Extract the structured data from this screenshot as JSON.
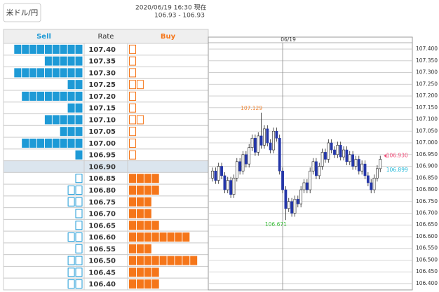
{
  "header": {
    "pair_button": "米ドル/円",
    "timestamp": "2020/06/19 16:30 現在",
    "quote": "106.93 - 106.93"
  },
  "order_book": {
    "columns": [
      "Sell",
      "Rate",
      "Buy"
    ],
    "sell_color": "#1e9ad6",
    "buy_color": "#f5761a",
    "rows": [
      {
        "rate": "107.40",
        "sell": 9,
        "buy": 1,
        "filled": "sell"
      },
      {
        "rate": "107.35",
        "sell": 5,
        "buy": 1,
        "filled": "sell"
      },
      {
        "rate": "107.30",
        "sell": 9,
        "buy": 1,
        "filled": "sell"
      },
      {
        "rate": "107.25",
        "sell": 2,
        "buy": 2,
        "filled": "sell"
      },
      {
        "rate": "107.20",
        "sell": 8,
        "buy": 1,
        "filled": "sell"
      },
      {
        "rate": "107.15",
        "sell": 2,
        "buy": 1,
        "filled": "sell"
      },
      {
        "rate": "107.10",
        "sell": 5,
        "buy": 2,
        "filled": "sell"
      },
      {
        "rate": "107.05",
        "sell": 3,
        "buy": 1,
        "filled": "sell"
      },
      {
        "rate": "107.00",
        "sell": 8,
        "buy": 1,
        "filled": "sell"
      },
      {
        "rate": "106.95",
        "sell": 1,
        "buy": 1,
        "filled": "sell"
      },
      {
        "rate": "106.90",
        "sell": 0,
        "buy": 0,
        "filled": null,
        "current": true
      },
      {
        "rate": "106.85",
        "sell": 1,
        "buy": 4,
        "filled": "buy"
      },
      {
        "rate": "106.80",
        "sell": 2,
        "buy": 4,
        "filled": "buy"
      },
      {
        "rate": "106.75",
        "sell": 2,
        "buy": 3,
        "filled": "buy"
      },
      {
        "rate": "106.70",
        "sell": 1,
        "buy": 3,
        "filled": "buy"
      },
      {
        "rate": "106.65",
        "sell": 1,
        "buy": 4,
        "filled": "buy"
      },
      {
        "rate": "106.60",
        "sell": 2,
        "buy": 8,
        "filled": "buy"
      },
      {
        "rate": "106.55",
        "sell": 1,
        "buy": 3,
        "filled": "buy"
      },
      {
        "rate": "106.50",
        "sell": 2,
        "buy": 9,
        "filled": "buy"
      },
      {
        "rate": "106.45",
        "sell": 2,
        "buy": 4,
        "filled": "buy"
      },
      {
        "rate": "106.40",
        "sell": 2,
        "buy": 4,
        "filled": "buy"
      }
    ]
  },
  "chart_data": {
    "type": "candlestick",
    "up_color": "#ffffff",
    "down_color": "#2436a8",
    "ylim": [
      106.373,
      107.451
    ],
    "grid": true,
    "yticks": [
      {
        "value": 107.4,
        "label": "107.400"
      },
      {
        "value": 107.35,
        "label": "107.350"
      },
      {
        "value": 107.3,
        "label": "107.300"
      },
      {
        "value": 107.25,
        "label": "107.250"
      },
      {
        "value": 107.2,
        "label": "107.200"
      },
      {
        "value": 107.15,
        "label": "107.150"
      },
      {
        "value": 107.1,
        "label": "107.100"
      },
      {
        "value": 107.05,
        "label": "107.050"
      },
      {
        "value": 107.0,
        "label": "107.000"
      },
      {
        "value": 106.95,
        "label": "106.950"
      },
      {
        "value": 106.9,
        "label": "106.900"
      },
      {
        "value": 106.85,
        "label": "106.850"
      },
      {
        "value": 106.8,
        "label": "106.800"
      },
      {
        "value": 106.75,
        "label": "106.750"
      },
      {
        "value": 106.7,
        "label": "106.700"
      },
      {
        "value": 106.65,
        "label": "106.650"
      },
      {
        "value": 106.6,
        "label": "106.600"
      },
      {
        "value": 106.55,
        "label": "106.550"
      },
      {
        "value": 106.5,
        "label": "106.500"
      },
      {
        "value": 106.45,
        "label": "106.450"
      },
      {
        "value": 106.4,
        "label": "106.400"
      }
    ],
    "divider": {
      "label": "06/19",
      "index": 23
    },
    "candles": [
      [
        106.85,
        106.895,
        106.835,
        106.88
      ],
      [
        106.88,
        106.895,
        106.825,
        106.84
      ],
      [
        106.84,
        106.915,
        106.825,
        106.9
      ],
      [
        106.9,
        106.915,
        106.845,
        106.86
      ],
      [
        106.86,
        106.875,
        106.785,
        106.8
      ],
      [
        106.8,
        106.855,
        106.785,
        106.84
      ],
      [
        106.84,
        106.855,
        106.765,
        106.78
      ],
      [
        106.78,
        106.865,
        106.765,
        106.85
      ],
      [
        106.85,
        106.935,
        106.835,
        106.92
      ],
      [
        106.92,
        106.935,
        106.865,
        106.88
      ],
      [
        106.88,
        106.965,
        106.865,
        106.95
      ],
      [
        106.95,
        106.965,
        106.895,
        106.91
      ],
      [
        106.91,
        106.995,
        106.895,
        106.98
      ],
      [
        106.98,
        107.035,
        106.965,
        107.02
      ],
      [
        107.02,
        107.035,
        106.945,
        106.96
      ],
      [
        106.96,
        107.045,
        106.945,
        107.03
      ],
      [
        107.03,
        107.129,
        106.975,
        106.99
      ],
      [
        106.99,
        107.075,
        106.975,
        107.06
      ],
      [
        107.06,
        107.075,
        106.985,
        107.0
      ],
      [
        107.0,
        107.015,
        106.955,
        106.97
      ],
      [
        106.97,
        107.065,
        106.955,
        107.05
      ],
      [
        107.05,
        107.065,
        107.005,
        107.02
      ],
      [
        107.02,
        107.035,
        106.865,
        106.88
      ],
      [
        106.88,
        106.895,
        106.785,
        106.8
      ],
      [
        106.8,
        106.815,
        106.671,
        106.72
      ],
      [
        106.72,
        106.765,
        106.705,
        106.75
      ],
      [
        106.75,
        106.765,
        106.685,
        106.7
      ],
      [
        106.7,
        106.775,
        106.685,
        106.76
      ],
      [
        106.76,
        106.775,
        106.725,
        106.74
      ],
      [
        106.74,
        106.815,
        106.725,
        106.8
      ],
      [
        106.8,
        106.845,
        106.785,
        106.83
      ],
      [
        106.83,
        106.845,
        106.785,
        106.8
      ],
      [
        106.8,
        106.895,
        106.785,
        106.88
      ],
      [
        106.88,
        106.935,
        106.865,
        106.92
      ],
      [
        106.92,
        106.935,
        106.845,
        106.86
      ],
      [
        106.86,
        106.915,
        106.845,
        106.9
      ],
      [
        106.9,
        106.975,
        106.885,
        106.96
      ],
      [
        106.96,
        106.975,
        106.915,
        106.93
      ],
      [
        106.93,
        107.015,
        106.915,
        107.0
      ],
      [
        107.0,
        107.015,
        106.955,
        106.97
      ],
      [
        106.97,
        106.985,
        106.935,
        106.95
      ],
      [
        106.95,
        107.005,
        106.935,
        106.99
      ],
      [
        106.99,
        107.005,
        106.925,
        106.94
      ],
      [
        106.94,
        106.985,
        106.925,
        106.97
      ],
      [
        106.97,
        106.985,
        106.905,
        106.92
      ],
      [
        106.92,
        106.965,
        106.905,
        106.95
      ],
      [
        106.95,
        106.965,
        106.885,
        106.9
      ],
      [
        106.9,
        106.945,
        106.885,
        106.93
      ],
      [
        106.93,
        106.945,
        106.865,
        106.88
      ],
      [
        106.88,
        106.925,
        106.865,
        106.91
      ],
      [
        106.91,
        106.925,
        106.845,
        106.86
      ],
      [
        106.86,
        106.875,
        106.815,
        106.83
      ],
      [
        106.83,
        106.845,
        106.785,
        106.8
      ],
      [
        106.8,
        106.865,
        106.785,
        106.85
      ],
      [
        106.85,
        106.905,
        106.835,
        106.89
      ],
      [
        106.89,
        106.945,
        106.875,
        106.93
      ]
    ],
    "annotations": [
      {
        "label": "107.129",
        "value": 107.129,
        "color": "#f08a3c",
        "kind": "high"
      },
      {
        "label": "106.671",
        "value": 106.671,
        "color": "#3cbf3c",
        "kind": "low"
      },
      {
        "label": "106.930",
        "value": 106.93,
        "color": "#f0507a",
        "kind": "last"
      },
      {
        "label": "106.899",
        "value": 106.899,
        "color": "#1fb8d8",
        "kind": "last"
      }
    ]
  }
}
